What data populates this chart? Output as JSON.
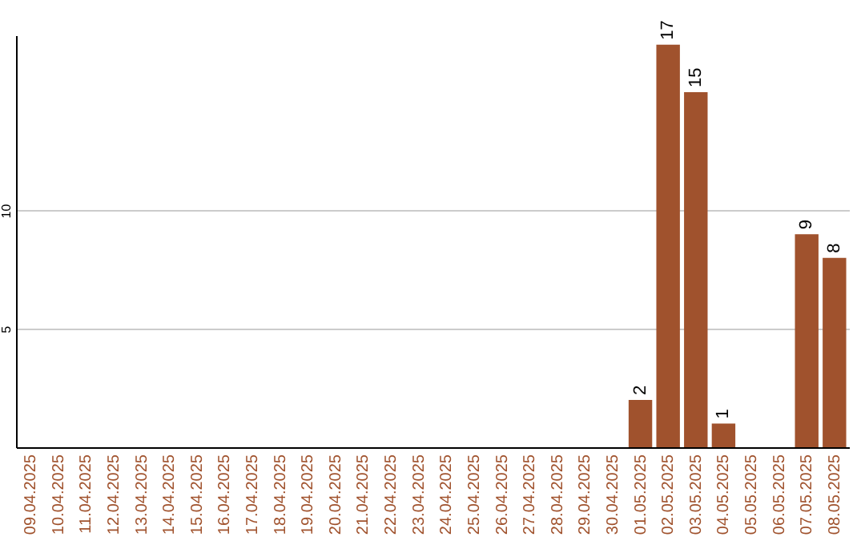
{
  "chart_data": {
    "type": "bar",
    "categories": [
      "09.04.2025",
      "10.04.2025",
      "11.04.2025",
      "12.04.2025",
      "13.04.2025",
      "14.04.2025",
      "15.04.2025",
      "16.04.2025",
      "17.04.2025",
      "18.04.2025",
      "19.04.2025",
      "20.04.2025",
      "21.04.2025",
      "22.04.2025",
      "23.04.2025",
      "24.04.2025",
      "25.04.2025",
      "26.04.2025",
      "27.04.2025",
      "28.04.2025",
      "29.04.2025",
      "30.04.2025",
      "01.05.2025",
      "02.05.2025",
      "03.05.2025",
      "04.05.2025",
      "05.05.2025",
      "06.05.2025",
      "07.05.2025",
      "08.05.2025"
    ],
    "values": [
      0,
      0,
      0,
      0,
      0,
      0,
      0,
      0,
      0,
      0,
      0,
      0,
      0,
      0,
      0,
      0,
      0,
      0,
      0,
      0,
      0,
      0,
      2,
      17,
      15,
      1,
      0,
      0,
      9,
      8
    ],
    "value_labels": [
      null,
      null,
      null,
      null,
      null,
      null,
      null,
      null,
      null,
      null,
      null,
      null,
      null,
      null,
      null,
      null,
      null,
      null,
      null,
      null,
      null,
      null,
      "2",
      "17",
      "15",
      "1",
      null,
      null,
      "9",
      "8"
    ],
    "color": "#a0522d",
    "ylim": [
      0,
      17.4
    ],
    "yticks": [
      5,
      10
    ],
    "grid": "y"
  }
}
